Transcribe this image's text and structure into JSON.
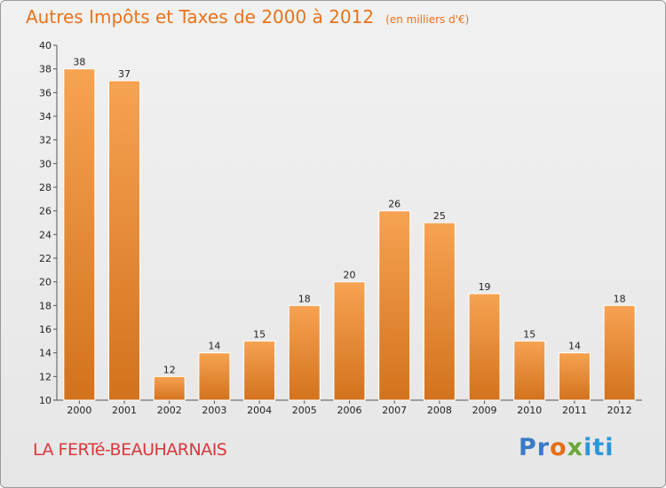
{
  "header": {
    "title": "Autres Impôts et Taxes de 2000 à 2012",
    "subtitle": "(en milliers d'€)"
  },
  "footer": {
    "commune": "LA FERTé-BEAUHARNAIS",
    "brand_parts": [
      "Pr",
      "o",
      "x",
      "iti"
    ]
  },
  "colors": {
    "bar_light": "#f6a352",
    "bar_dark": "#d3721d",
    "title": "#e8731c",
    "commune": "#d9383b"
  },
  "chart_data": {
    "type": "bar",
    "title": "Autres Impôts et Taxes de 2000 à 2012",
    "subtitle": "(en milliers d'€)",
    "categories": [
      "2000",
      "2001",
      "2002",
      "2003",
      "2004",
      "2005",
      "2006",
      "2007",
      "2008",
      "2009",
      "2010",
      "2011",
      "2012"
    ],
    "values": [
      38,
      37,
      12,
      14,
      15,
      18,
      20,
      26,
      25,
      19,
      15,
      14,
      18
    ],
    "xlabel": "",
    "ylabel": "",
    "ylim": [
      10,
      40
    ],
    "yticks": [
      10,
      12,
      14,
      16,
      18,
      20,
      22,
      24,
      26,
      28,
      30,
      32,
      34,
      36,
      38,
      40
    ],
    "grid": false,
    "data_labels": true
  }
}
